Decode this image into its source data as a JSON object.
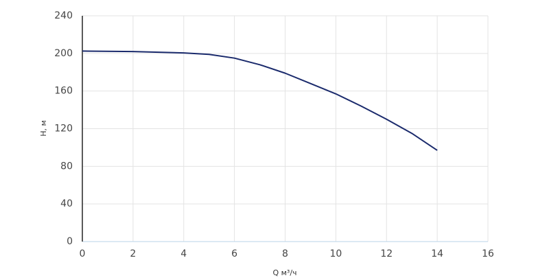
{
  "chart_data": {
    "type": "line",
    "x_label": "Q м³/ч",
    "y_label": "H, м",
    "x": [
      0,
      2,
      4,
      5,
      6,
      7,
      8,
      9,
      10,
      11,
      12,
      13,
      14
    ],
    "series": [
      {
        "color": "#1a2a6c",
        "values": [
          202.5,
          202,
          200.5,
          199,
          195,
          188,
          179,
          168,
          157,
          144,
          130,
          115,
          97
        ]
      }
    ],
    "xlim": [
      0,
      16
    ],
    "xticks": [
      0,
      2,
      4,
      6,
      8,
      10,
      12,
      14,
      16
    ],
    "ylim": [
      0,
      240
    ],
    "yticks": [
      0,
      40,
      80,
      120,
      160,
      200,
      240
    ],
    "grid": true
  }
}
